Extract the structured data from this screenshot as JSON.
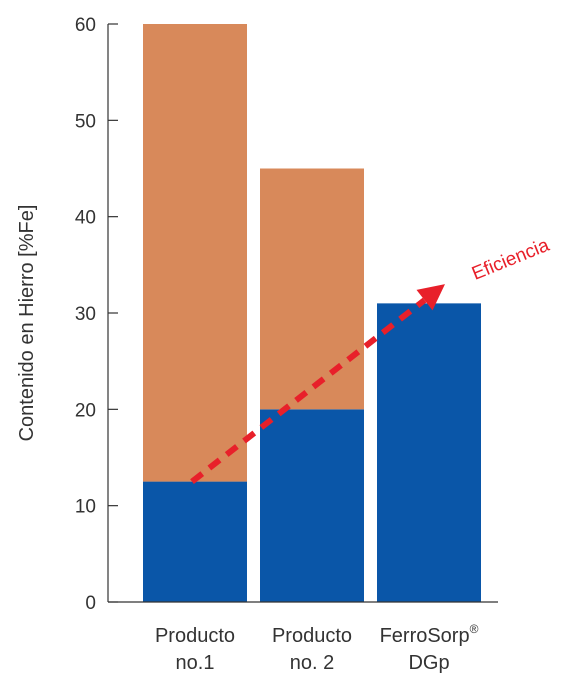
{
  "chart_data": {
    "type": "bar",
    "stacked": true,
    "title": "",
    "xlabel": "",
    "ylabel": "Contenido en Hierro [%Fe]",
    "ylim": [
      0,
      60
    ],
    "yticks": [
      0,
      10,
      20,
      30,
      40,
      50,
      60
    ],
    "grid": false,
    "categories": [
      {
        "line1": "Producto",
        "line2": "no.1",
        "sup": ""
      },
      {
        "line1": "Producto",
        "line2": "no. 2",
        "sup": ""
      },
      {
        "line1": "FerroSorp",
        "line2": "DGp",
        "sup": "®"
      }
    ],
    "series": [
      {
        "values": [
          12.5,
          20,
          31
        ],
        "color": "#0a56a8"
      },
      {
        "values": [
          47.5,
          25,
          0
        ],
        "color": "#d8895a"
      }
    ],
    "annotation": {
      "text": "Eficiencia",
      "color": "#e8202a",
      "from": {
        "category": 0,
        "y": 12.5
      },
      "to": {
        "category": 2,
        "y": 33
      }
    }
  }
}
